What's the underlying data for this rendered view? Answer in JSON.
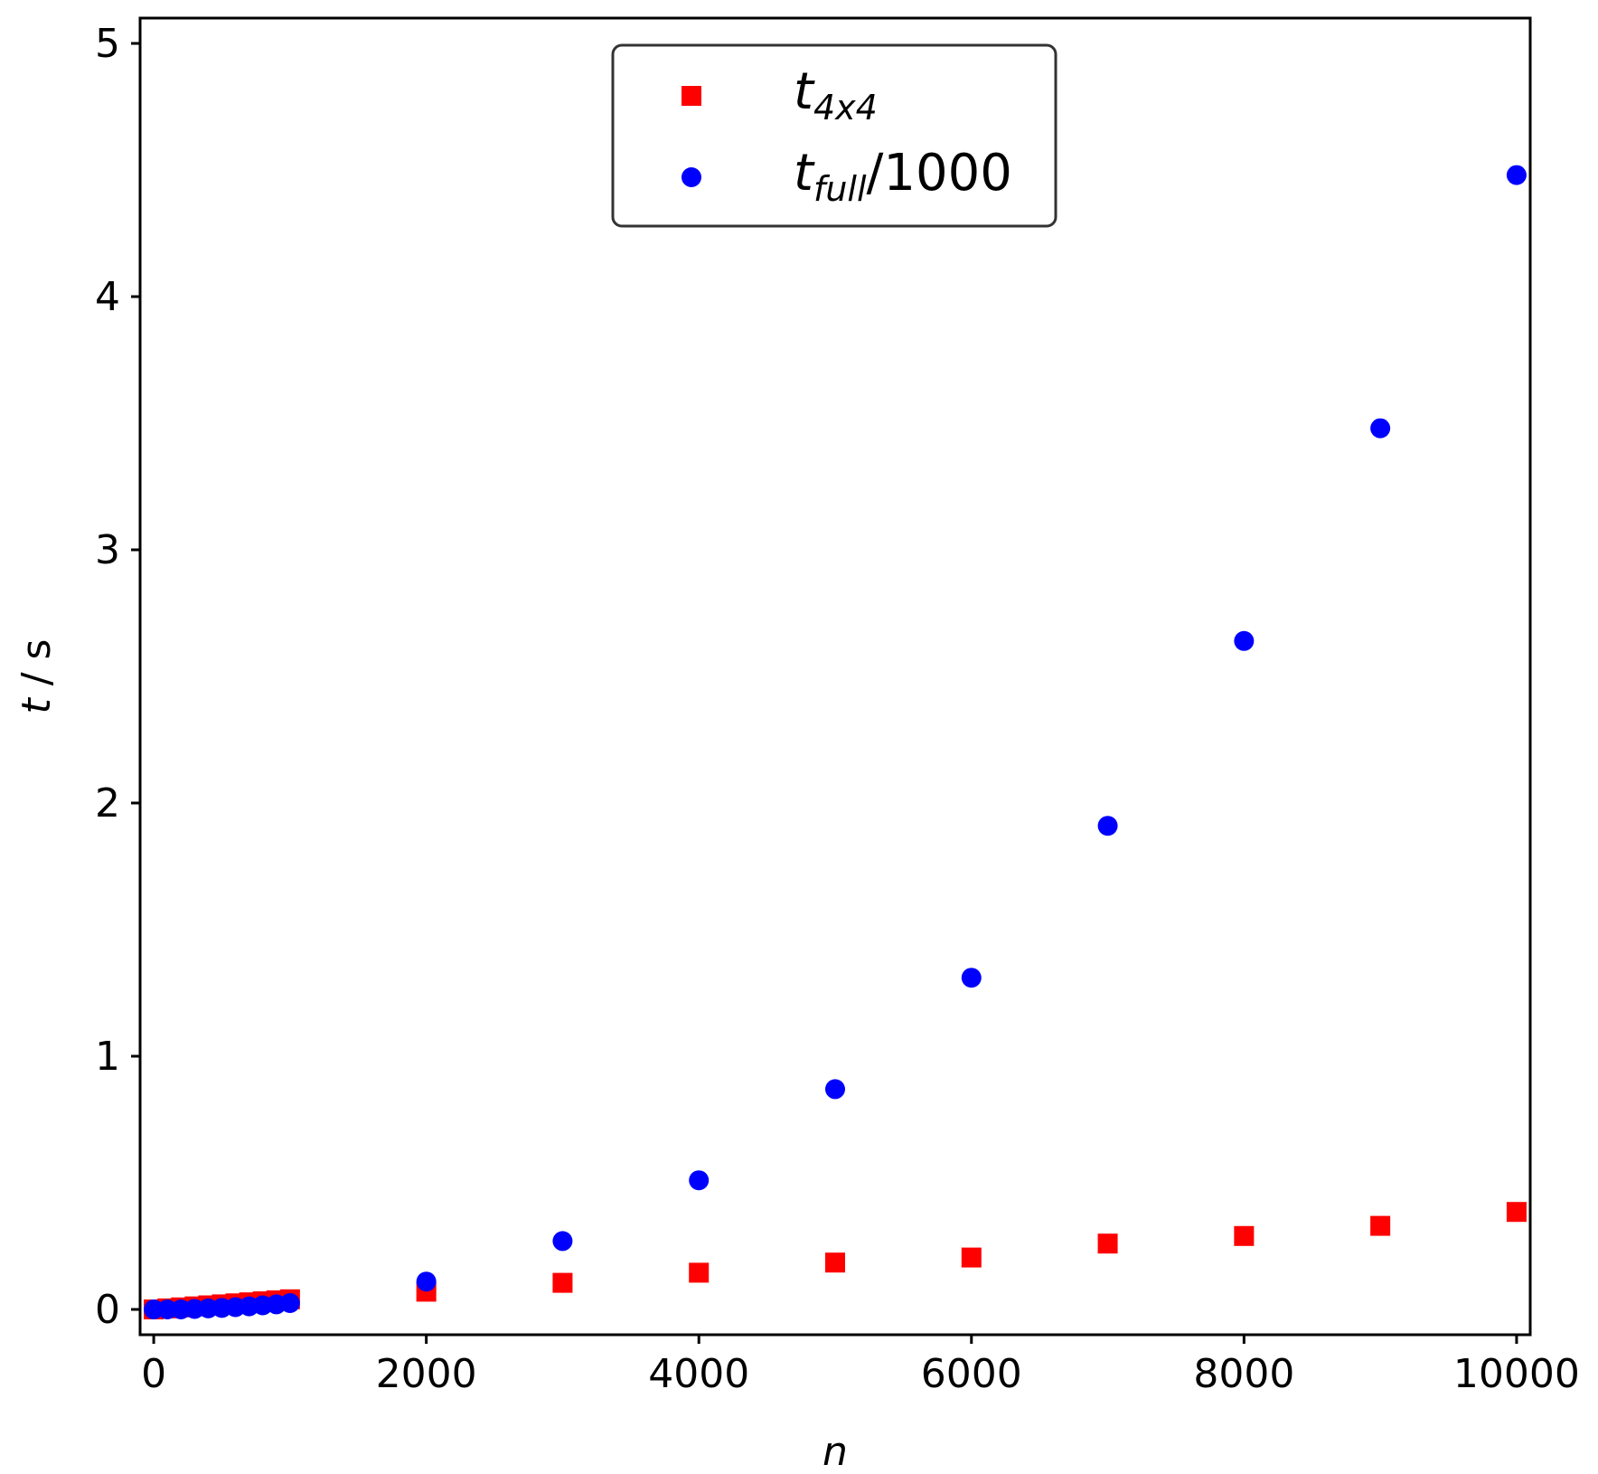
{
  "chart_data": {
    "type": "scatter",
    "xlabel": "n",
    "ylabel_var": "t",
    "ylabel_unit": "s",
    "xlim": [
      -100,
      10100
    ],
    "ylim": [
      -0.1,
      5.1
    ],
    "x_ticks": [
      0,
      2000,
      4000,
      6000,
      8000,
      10000
    ],
    "y_ticks": [
      0,
      1,
      2,
      3,
      4,
      5
    ],
    "grid": false,
    "legend_position": "top-center",
    "series": [
      {
        "key": "t4x4",
        "label_base": "t",
        "label_sub": "4x4",
        "label_suffix": "",
        "marker": "square",
        "color": "#ff0000",
        "points": [
          [
            0,
            0.0
          ],
          [
            100,
            0.004
          ],
          [
            200,
            0.008
          ],
          [
            300,
            0.012
          ],
          [
            400,
            0.016
          ],
          [
            500,
            0.02
          ],
          [
            600,
            0.024
          ],
          [
            700,
            0.028
          ],
          [
            800,
            0.032
          ],
          [
            900,
            0.036
          ],
          [
            1000,
            0.04
          ],
          [
            2000,
            0.07
          ],
          [
            3000,
            0.105
          ],
          [
            4000,
            0.145
          ],
          [
            5000,
            0.185
          ],
          [
            6000,
            0.205
          ],
          [
            7000,
            0.26
          ],
          [
            8000,
            0.29
          ],
          [
            9000,
            0.33
          ],
          [
            10000,
            0.385
          ]
        ]
      },
      {
        "key": "tfull",
        "label_base": "t",
        "label_sub": "full",
        "label_suffix": "/1000",
        "marker": "circle",
        "color": "#0000ff",
        "points": [
          [
            0,
            0.0
          ],
          [
            100,
            0.0
          ],
          [
            200,
            0.0
          ],
          [
            300,
            0.002
          ],
          [
            400,
            0.004
          ],
          [
            500,
            0.006
          ],
          [
            600,
            0.009
          ],
          [
            700,
            0.012
          ],
          [
            800,
            0.016
          ],
          [
            900,
            0.02
          ],
          [
            1000,
            0.025
          ],
          [
            2000,
            0.11
          ],
          [
            3000,
            0.27
          ],
          [
            4000,
            0.51
          ],
          [
            5000,
            0.87
          ],
          [
            6000,
            1.31
          ],
          [
            7000,
            1.91
          ],
          [
            8000,
            2.64
          ],
          [
            9000,
            3.48
          ],
          [
            10000,
            4.48
          ]
        ]
      }
    ]
  }
}
